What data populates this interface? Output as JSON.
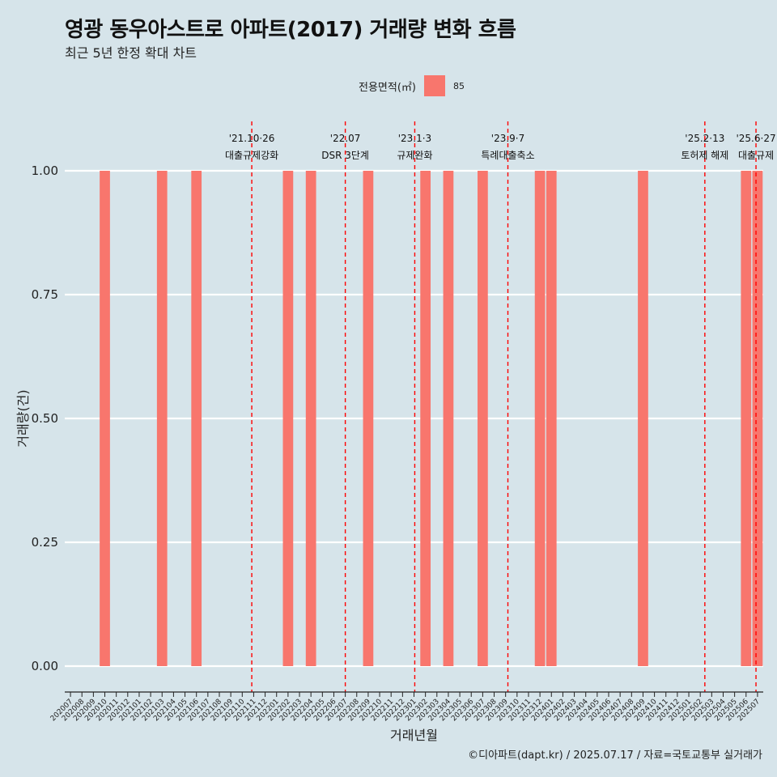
{
  "header": {
    "title": "영광 동우아스트로 아파트(2017) 거래량 변화 흐름",
    "subtitle": "최근 5년 한정 확대 차트"
  },
  "legend": {
    "title": "전용면적(㎡)",
    "items": [
      {
        "label": "85",
        "color": "#f8766d"
      }
    ]
  },
  "caption": "©디아파트(dapt.kr) / 2025.07.17 / 자료=국토교통부 실거래가",
  "chart_data": {
    "type": "bar",
    "xlabel": "거래년월",
    "ylabel": "거래량(건)",
    "ylim": [
      0,
      1
    ],
    "y_ticks": [
      "0.00",
      "0.25",
      "0.50",
      "0.75",
      "1.00"
    ],
    "categories": [
      "202007",
      "202008",
      "202009",
      "202010",
      "202011",
      "202012",
      "202101",
      "202102",
      "202103",
      "202104",
      "202105",
      "202106",
      "202107",
      "202108",
      "202109",
      "202110",
      "202111",
      "202112",
      "202201",
      "202202",
      "202203",
      "202204",
      "202205",
      "202206",
      "202207",
      "202208",
      "202209",
      "202210",
      "202211",
      "202212",
      "202301",
      "202302",
      "202303",
      "202304",
      "202305",
      "202306",
      "202307",
      "202308",
      "202309",
      "202310",
      "202311",
      "202312",
      "202401",
      "202402",
      "202403",
      "202404",
      "202405",
      "202406",
      "202407",
      "202408",
      "202409",
      "202410",
      "202411",
      "202412",
      "202501",
      "202502",
      "202503",
      "202504",
      "202505",
      "202506",
      "202507"
    ],
    "series": [
      {
        "name": "85",
        "color": "#f8766d",
        "points": [
          {
            "x": "202010",
            "y": 1
          },
          {
            "x": "202103",
            "y": 1
          },
          {
            "x": "202106",
            "y": 1
          },
          {
            "x": "202202",
            "y": 1
          },
          {
            "x": "202204",
            "y": 1
          },
          {
            "x": "202209",
            "y": 1
          },
          {
            "x": "202302",
            "y": 1
          },
          {
            "x": "202304",
            "y": 1
          },
          {
            "x": "202307",
            "y": 1
          },
          {
            "x": "202312",
            "y": 1
          },
          {
            "x": "202401",
            "y": 1
          },
          {
            "x": "202409",
            "y": 1
          },
          {
            "x": "202506",
            "y": 1
          },
          {
            "x": "202507",
            "y": 1
          }
        ]
      }
    ],
    "events": [
      {
        "date": "2021-10-26",
        "line1": "'21.10·26",
        "line2": "대출규제강화"
      },
      {
        "date": "2022-07-01",
        "line1": "'22.07",
        "line2": "DSR 3단계"
      },
      {
        "date": "2023-01-03",
        "line1": "'23.1·3",
        "line2": "규제완화"
      },
      {
        "date": "2023-09-07",
        "line1": "'23.9·7",
        "line2": "특례대출축소"
      },
      {
        "date": "2025-02-13",
        "line1": "'25.2·13",
        "line2": "토허제 해제"
      },
      {
        "date": "2025-06-27",
        "line1": "'25.6·27",
        "line2": "대출규제"
      }
    ],
    "event_line_color": "#ff0000",
    "grid": true
  }
}
